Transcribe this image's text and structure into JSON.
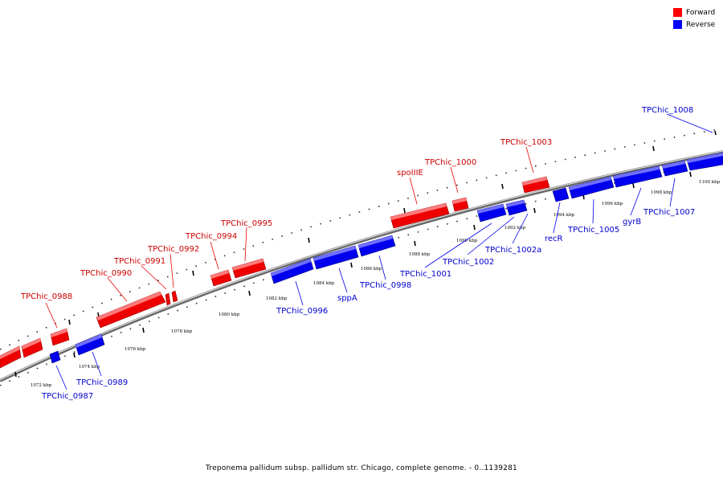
{
  "legend": {
    "forward_label": "Forward",
    "reverse_label": "Reverse",
    "forward_color": "#ff0000",
    "reverse_color": "#0000ff"
  },
  "caption": "Treponema pallidum subsp. pallidum str. Chicago, complete genome. - 0..1139281",
  "scale": {
    "unit": "kbp",
    "ticks": [
      "1072 kbp",
      "1074 kbp",
      "1076 kbp",
      "1078 kbp",
      "1080 kbp",
      "1082 kbp",
      "1084 kbp",
      "1086 kbp",
      "1088 kbp",
      "1090 kbp",
      "1092 kbp",
      "1094 kbp",
      "1096 kbp",
      "1098 kbp",
      "1100 kbp"
    ]
  },
  "genes": [
    {
      "name": "TPChic_0988",
      "strand": "forward"
    },
    {
      "name": "TPChic_0990",
      "strand": "forward"
    },
    {
      "name": "TPChic_0991",
      "strand": "forward"
    },
    {
      "name": "TPChic_0992",
      "strand": "forward"
    },
    {
      "name": "TPChic_0994",
      "strand": "forward"
    },
    {
      "name": "TPChic_0995",
      "strand": "forward"
    },
    {
      "name": "spoIIIE",
      "strand": "forward"
    },
    {
      "name": "TPChic_1000",
      "strand": "forward"
    },
    {
      "name": "TPChic_1003",
      "strand": "forward"
    },
    {
      "name": "TPChic_0987",
      "strand": "reverse"
    },
    {
      "name": "TPChic_0989",
      "strand": "reverse"
    },
    {
      "name": "TPChic_0996",
      "strand": "reverse"
    },
    {
      "name": "sppA",
      "strand": "reverse"
    },
    {
      "name": "TPChic_0998",
      "strand": "reverse"
    },
    {
      "name": "TPChic_1001",
      "strand": "reverse"
    },
    {
      "name": "TPChic_1002",
      "strand": "reverse"
    },
    {
      "name": "TPChic_1002a",
      "strand": "reverse"
    },
    {
      "name": "recR",
      "strand": "reverse"
    },
    {
      "name": "TPChic_1005",
      "strand": "reverse"
    },
    {
      "name": "gyrB",
      "strand": "reverse"
    },
    {
      "name": "TPChic_1007",
      "strand": "reverse"
    },
    {
      "name": "TPChic_1008",
      "strand": "reverse"
    }
  ]
}
